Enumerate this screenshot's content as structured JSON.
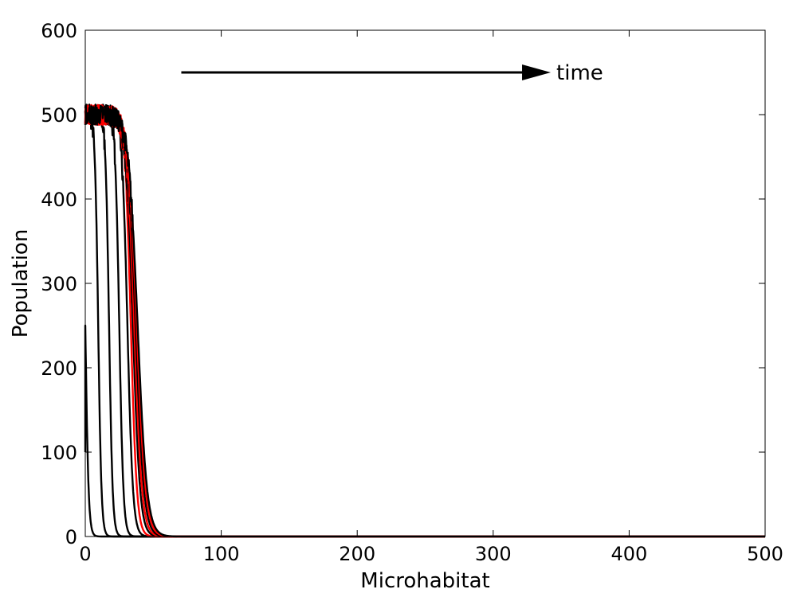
{
  "chart_data": {
    "type": "line",
    "title": "",
    "xlabel": "Microhabitat",
    "ylabel": "Population",
    "xlim": [
      0,
      500
    ],
    "ylim": [
      0,
      600
    ],
    "xticks": [
      0,
      100,
      200,
      300,
      400,
      500
    ],
    "yticks": [
      0,
      100,
      200,
      300,
      400,
      500,
      600
    ],
    "grid": false,
    "annotation": {
      "text": "time",
      "arrow_from": [
        80,
        550
      ],
      "arrow_to": [
        340,
        550
      ]
    },
    "series": [
      {
        "color": "#000000",
        "front": 0,
        "width": 1.2,
        "start": 100
      },
      {
        "color": "#000000",
        "front": 9.5,
        "width": 1.2
      },
      {
        "color": "#000000",
        "front": 17.5,
        "width": 1.3
      },
      {
        "color": "#000000",
        "front": 25,
        "width": 1.5
      },
      {
        "color": "#000000",
        "front": 31,
        "width": 2.0
      },
      {
        "color": "#ff0000",
        "front": 33.5,
        "width": 2.2
      },
      {
        "color": "#000000",
        "front": 35,
        "width": 2.6
      },
      {
        "color": "#ff0000",
        "front": 36,
        "width": 2.8
      },
      {
        "color": "#000000",
        "front": 37,
        "width": 3.0
      },
      {
        "color": "#ff0000",
        "front": 37.8,
        "width": 3.2
      },
      {
        "color": "#000000",
        "front": 38.5,
        "width": 3.4
      }
    ]
  }
}
